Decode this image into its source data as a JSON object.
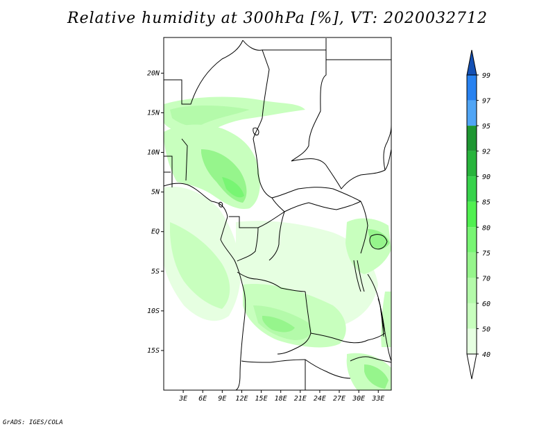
{
  "title": "Relative humidity at 300hPa [%], VT: 2020032712",
  "credit": "GrADS: IGES/COLA",
  "map": {
    "lat_ticks": [
      "20N",
      "15N",
      "10N",
      "5N",
      "EQ",
      "5S",
      "10S",
      "15S"
    ],
    "lon_ticks": [
      "3E",
      "6E",
      "9E",
      "12E",
      "15E",
      "18E",
      "21E",
      "24E",
      "27E",
      "30E",
      "33E"
    ],
    "lon_range": [
      0,
      35
    ],
    "lat_range": [
      -20,
      24.5
    ]
  },
  "colorbar": {
    "labels": [
      "99",
      "97",
      "95",
      "92",
      "90",
      "85",
      "80",
      "75",
      "70",
      "60",
      "50",
      "40"
    ],
    "colors": [
      "#1e64c8",
      "#2882f0",
      "#50a5f5",
      "#1e9632",
      "#28b43c",
      "#37d24b",
      "#50f050",
      "#78f573",
      "#96f58c",
      "#b4faaa",
      "#c8ffbe",
      "#e6ffe1"
    ],
    "top_color": "#1450b4"
  },
  "chart_data": {
    "type": "heatmap",
    "title": "Relative humidity at 300hPa [%], VT: 2020032712",
    "xlabel": "",
    "ylabel": "",
    "x_ticks": [
      "3E",
      "6E",
      "9E",
      "12E",
      "15E",
      "18E",
      "21E",
      "24E",
      "27E",
      "30E",
      "33E"
    ],
    "y_ticks": [
      "20N",
      "15N",
      "10N",
      "5N",
      "EQ",
      "5S",
      "10S",
      "15S"
    ],
    "legend_levels": [
      40,
      50,
      60,
      70,
      75,
      80,
      85,
      90,
      92,
      95,
      97,
      99
    ],
    "legend_position": "right"
  }
}
